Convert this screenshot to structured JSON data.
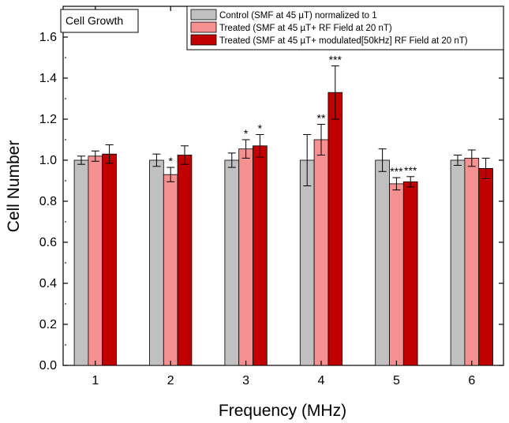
{
  "chart_data": {
    "type": "bar",
    "title": "Cell Growth",
    "xlabel": "Frequency (MHz)",
    "ylabel": "Cell Number",
    "categories": [
      "1",
      "2",
      "3",
      "4",
      "5",
      "6"
    ],
    "ylim": [
      0,
      1.75
    ],
    "yticks": [
      "0.0",
      "0.2",
      "0.4",
      "0.6",
      "0.8",
      "1.0",
      "1.2",
      "1.4",
      "1.6"
    ],
    "grid": false,
    "legend_position": "top-right",
    "series": [
      {
        "name": "Control  (SMF at 45 µT) normalized to 1",
        "color": "#c0c0c0",
        "values": [
          1.0,
          1.0,
          1.0,
          1.0,
          1.0,
          1.0
        ],
        "errors": [
          0.02,
          0.03,
          0.035,
          0.125,
          0.055,
          0.025
        ],
        "annotations": [
          "",
          "",
          "",
          "",
          "",
          ""
        ]
      },
      {
        "name": "Treated (SMF at 45 µT+ RF Field at 20 nT)",
        "color": "#f69191",
        "values": [
          1.02,
          0.93,
          1.055,
          1.1,
          0.885,
          1.01
        ],
        "errors": [
          0.025,
          0.035,
          0.045,
          0.075,
          0.03,
          0.04
        ],
        "annotations": [
          "",
          "*",
          "*",
          "**",
          "***",
          ""
        ]
      },
      {
        "name": "Treated (SMF at 45 µT+ modulated[50kHz] RF Field at 20 nT)",
        "color": "#c00000",
        "values": [
          1.03,
          1.025,
          1.07,
          1.33,
          0.895,
          0.96
        ],
        "errors": [
          0.045,
          0.045,
          0.055,
          0.13,
          0.025,
          0.05
        ],
        "annotations": [
          "",
          "",
          "*",
          "***",
          "***",
          ""
        ]
      }
    ]
  }
}
